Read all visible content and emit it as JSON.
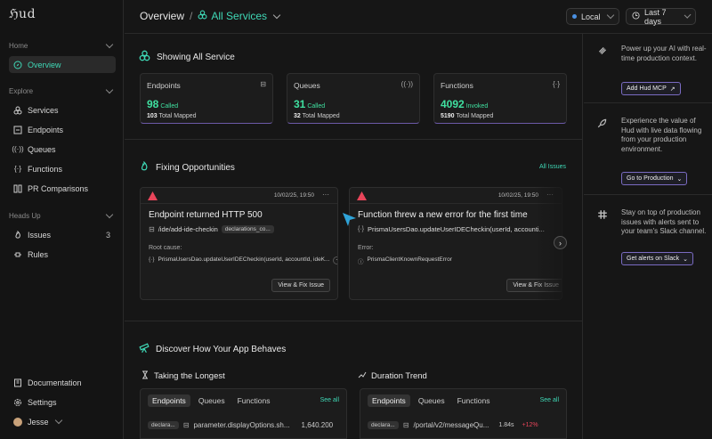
{
  "app": {
    "logo": "ℌud"
  },
  "sidebar": {
    "sections": [
      {
        "label": "Home"
      },
      {
        "label": "Explore"
      },
      {
        "label": "Heads Up"
      }
    ],
    "items": [
      {
        "label": "Overview",
        "icon": "compass-icon"
      },
      {
        "label": "Services",
        "icon": "services-icon"
      },
      {
        "label": "Endpoints",
        "icon": "endpoints-icon"
      },
      {
        "label": "Queues",
        "icon": "queues-icon"
      },
      {
        "label": "Functions",
        "icon": "functions-icon"
      },
      {
        "label": "PR Comparisons",
        "icon": "pr-icon"
      },
      {
        "label": "Issues",
        "icon": "fire-icon",
        "count": "3"
      },
      {
        "label": "Rules",
        "icon": "rules-icon"
      }
    ],
    "footer": [
      {
        "label": "Documentation"
      },
      {
        "label": "Settings"
      },
      {
        "label": "Jesse"
      }
    ]
  },
  "header": {
    "crumb_root": "Overview",
    "crumb_sep": "/",
    "crumb_current": "All Services",
    "env": "Local",
    "range": "Last 7 days",
    "accent": "#3fd8b6"
  },
  "services": {
    "title": "Showing All Service",
    "stats": [
      {
        "label": "Endpoints",
        "icon": "⊟",
        "value": "98",
        "unit": "Called",
        "mapped_num": "103",
        "mapped_text": "Total Mapped"
      },
      {
        "label": "Queues",
        "icon": "((·))",
        "value": "31",
        "unit": "Called",
        "mapped_num": "32",
        "mapped_text": "Total Mapped"
      },
      {
        "label": "Functions",
        "icon": "{·}",
        "value": "4092",
        "unit": "Invoked",
        "mapped_num": "5190",
        "mapped_text": "Total Mapped"
      }
    ]
  },
  "opportunities": {
    "title": "Fixing Opportunities",
    "all_issues": "All Issues",
    "cards": [
      {
        "time": "10/02/25, 19:50",
        "title": "Endpoint returned HTTP 500",
        "path": "/ide/add-ide-checkin",
        "tag": "declarations_co...",
        "cause_label": "Root cause:",
        "cause_fn": "PrismaUsersDao.updateUserIDECheckin(userId, accountId, ideK...",
        "cause_extra": "+1",
        "button": "View & Fix Issue"
      },
      {
        "time": "10/02/25, 19:50",
        "title": "Function threw a new error for the first time",
        "path": "PrismaUsersDao.updateUserIDECheckin(userId, accounti...",
        "cause_label": "Error:",
        "cause_fn": "PrismaClientKnownRequestError",
        "button": "View & Fix Issue"
      }
    ]
  },
  "discover": {
    "title": "Discover How Your App Behaves",
    "longest": {
      "title": "Taking the Longest",
      "tabs": [
        "Endpoints",
        "Queues",
        "Functions"
      ],
      "see_all": "See all",
      "row": {
        "tag": "declara...",
        "name": "parameter.displayOptions.sh...",
        "value": "1,640.200"
      }
    },
    "trend": {
      "title": "Duration Trend",
      "tabs": [
        "Endpoints",
        "Queues",
        "Functions"
      ],
      "see_all": "See all",
      "row": {
        "tag": "declara...",
        "name": "/portal/v2/messageQu...",
        "value": "1.84s",
        "delta": "+12%"
      }
    }
  },
  "promos": [
    {
      "text": "Power up your AI with real-time production context.",
      "button": "Add Hud MCP",
      "button_icon": "↗"
    },
    {
      "text": "Experience the value of Hud with live data flowing from your production environment.",
      "button": "Go to Production",
      "button_icon": "⌄"
    },
    {
      "text": "Stay on top of production issues with alerts sent to your team's Slack channel.",
      "button": "Get alerts on Slack",
      "button_icon": "⌄"
    }
  ]
}
